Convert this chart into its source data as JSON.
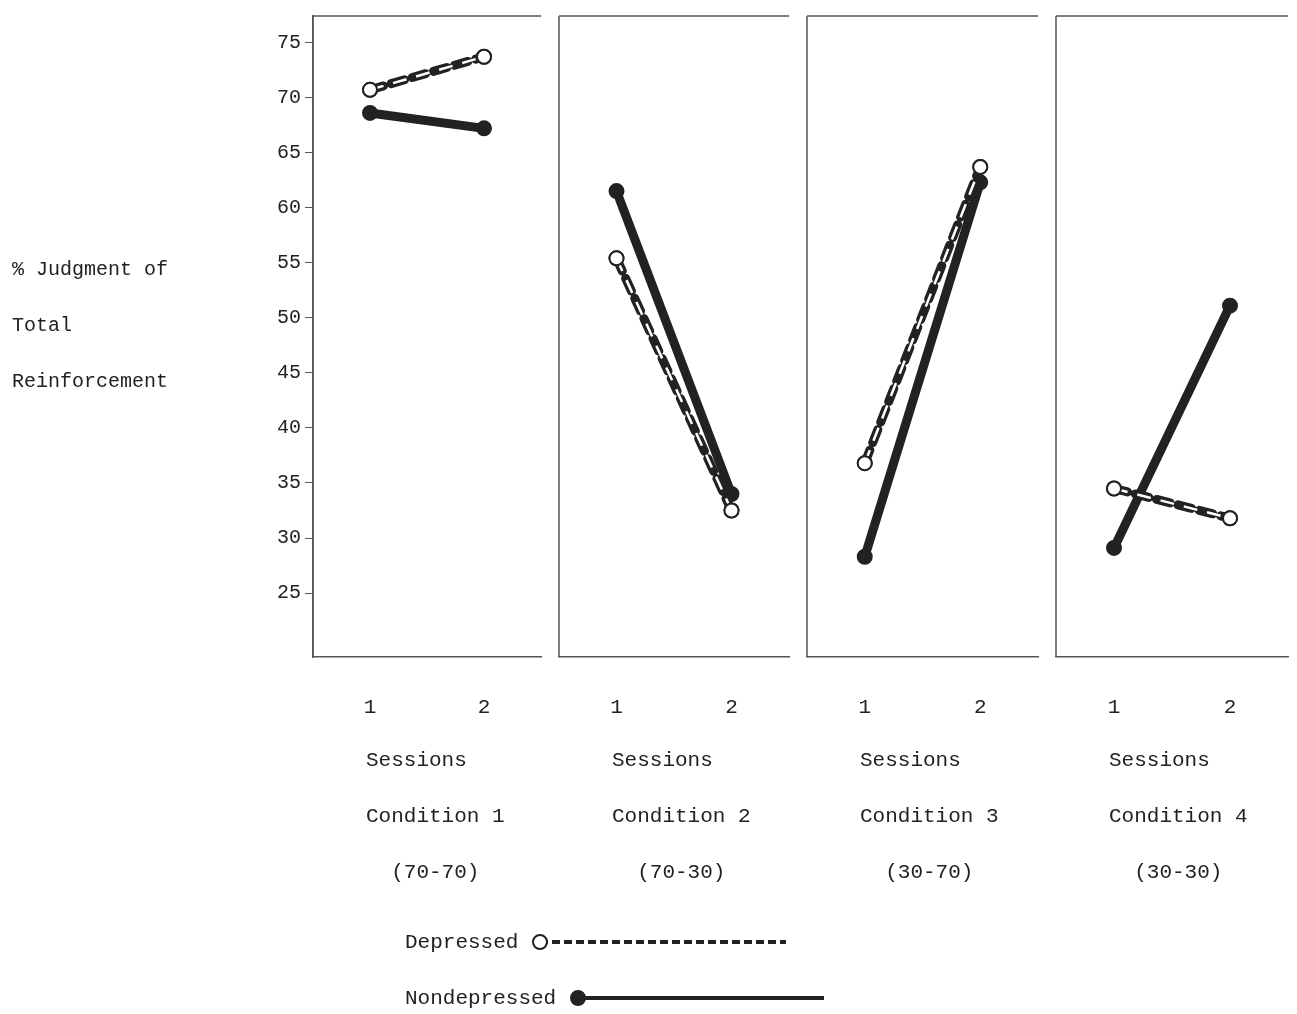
{
  "chart_data": [
    {
      "type": "line",
      "categories": [
        "1",
        "2"
      ],
      "xlabel": "Sessions",
      "ylabel": "% Judgment of Total Reinforcement",
      "annotations": [
        "Condition 1",
        "(70-70)"
      ],
      "ylim": [
        19.2,
        77.4
      ],
      "yticks": [
        25,
        30,
        35,
        40,
        45,
        50,
        55,
        60,
        65,
        70,
        75
      ],
      "grid": false,
      "marker": "circle",
      "legend": "bottom",
      "series": [
        {
          "name": "Depressed",
          "color": "#222222",
          "line_style": "dashed",
          "values": [
            70.7,
            73.7
          ]
        },
        {
          "name": "Nondepressed",
          "color": "#222222",
          "line_style": "solid",
          "values": [
            68.6,
            67.2
          ]
        }
      ]
    },
    {
      "type": "line",
      "categories": [
        "1",
        "2"
      ],
      "xlabel": "Sessions",
      "annotations": [
        "Condition 2",
        "(70-30)"
      ],
      "ylim": [
        19.2,
        77.4
      ],
      "tick_labels": "x",
      "grid": false,
      "marker": "circle",
      "series": [
        {
          "color": "#222222",
          "line_style": "dashed",
          "values": [
            55.4,
            32.5
          ]
        },
        {
          "color": "#222222",
          "line_style": "solid",
          "values": [
            61.5,
            34.0
          ]
        }
      ]
    },
    {
      "type": "line",
      "categories": [
        "1",
        "2"
      ],
      "xlabel": "Sessions",
      "annotations": [
        "Condition 3",
        "(30-70)"
      ],
      "ylim": [
        19.2,
        77.4
      ],
      "tick_labels": "x",
      "grid": false,
      "marker": "circle",
      "series": [
        {
          "color": "#222222",
          "line_style": "dashed",
          "values": [
            36.8,
            63.7
          ]
        },
        {
          "color": "#222222",
          "line_style": "solid",
          "values": [
            28.3,
            62.3
          ]
        }
      ]
    },
    {
      "type": "line",
      "categories": [
        "1",
        "2"
      ],
      "xlabel": "Sessions",
      "annotations": [
        "Condition 4",
        "(30-30)"
      ],
      "ylim": [
        19.2,
        77.4
      ],
      "tick_labels": "x",
      "grid": false,
      "marker": "circle",
      "series": [
        {
          "color": "#222222",
          "line_style": "dashed",
          "values": [
            34.5,
            31.8
          ]
        },
        {
          "color": "#222222",
          "line_style": "solid",
          "values": [
            29.1,
            51.1
          ]
        }
      ]
    }
  ]
}
